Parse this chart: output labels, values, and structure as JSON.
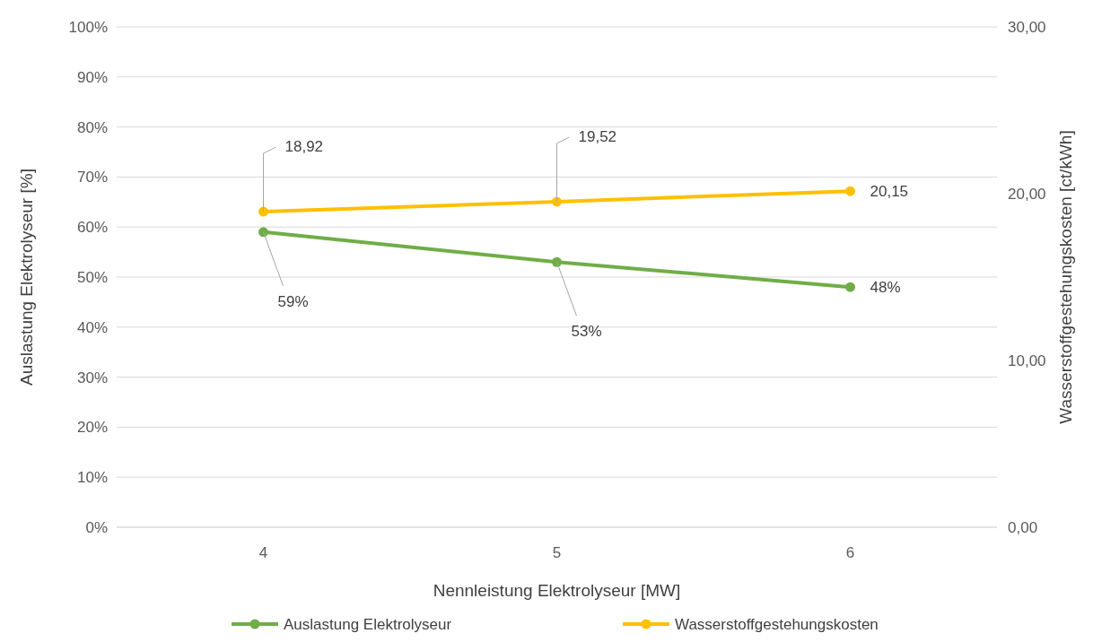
{
  "chart_data": {
    "type": "line",
    "xlabel": "Nennleistung Elektrolyseur [MW]",
    "ylabel": "Auslastung Elektrolyseur [%]",
    "y2label": "Wasserstoffgestehungskosten [ct/kWh]",
    "categories": [
      "4",
      "5",
      "6"
    ],
    "series": [
      {
        "name": "Auslastung Elektrolyseur",
        "color": "#70ad47",
        "values": [
          59,
          53,
          48
        ],
        "value_labels": [
          "59%",
          "53%",
          "48%"
        ]
      },
      {
        "name": "Wasserstoffgestehungskosten",
        "color": "#ffc000",
        "values": [
          18.92,
          19.52,
          20.15
        ],
        "value_labels": [
          "18,92",
          "19,52",
          "20,15"
        ],
        "axis": "y2"
      }
    ],
    "ylim": [
      0,
      100
    ],
    "yticks": [
      {
        "value": 0,
        "label": "0%"
      },
      {
        "value": 10,
        "label": "10%"
      },
      {
        "value": 20,
        "label": "20%"
      },
      {
        "value": 30,
        "label": "30%"
      },
      {
        "value": 40,
        "label": "40%"
      },
      {
        "value": 50,
        "label": "50%"
      },
      {
        "value": 60,
        "label": "60%"
      },
      {
        "value": 70,
        "label": "70%"
      },
      {
        "value": 80,
        "label": "80%"
      },
      {
        "value": 90,
        "label": "90%"
      },
      {
        "value": 100,
        "label": "100%"
      }
    ],
    "y2lim": [
      0,
      30
    ],
    "y2ticks": [
      {
        "value": 0,
        "label": "0,00"
      },
      {
        "value": 10,
        "label": "10,00"
      },
      {
        "value": 20,
        "label": "20,00"
      },
      {
        "value": 30,
        "label": "30,00"
      }
    ],
    "grid": "y",
    "legend": "bottom",
    "marker": "circle",
    "line_style": "solid"
  }
}
